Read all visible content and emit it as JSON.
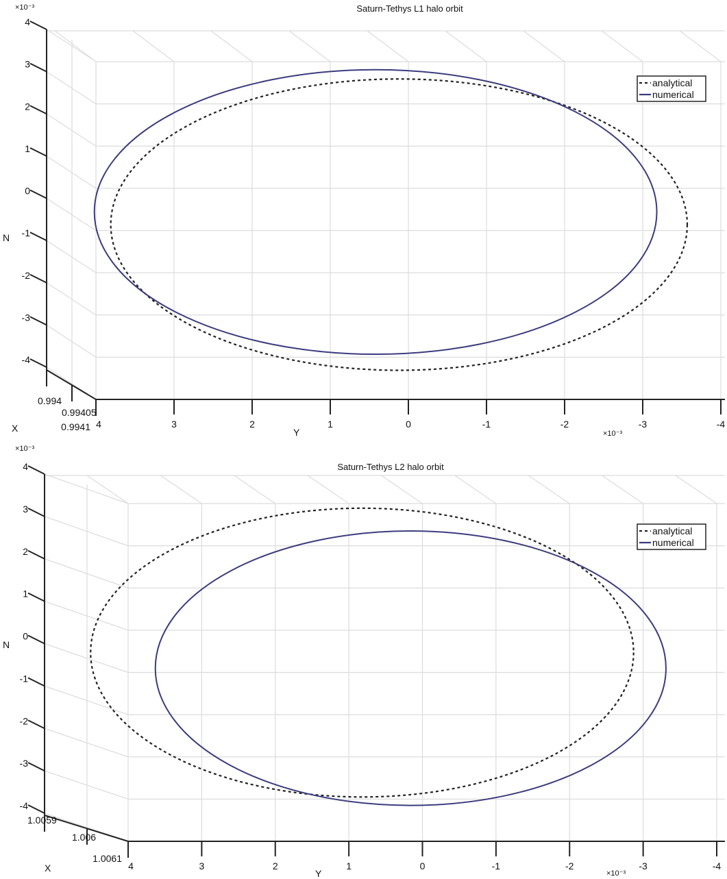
{
  "colors": {
    "numerical": "#3b3b7e",
    "analytical": "#222222",
    "grid": "#dcdcdc",
    "axis": "#222222"
  },
  "chart_data": [
    {
      "type": "line",
      "title": "Saturn-Tethys L1 halo orbit",
      "xlabel": "X",
      "ylabel": "Y",
      "zlabel": "N",
      "y_scale_label": "×10⁻³",
      "z_scale_label": "×10⁻³",
      "x_ticks": [
        "0.994",
        "0.99405",
        "0.9941"
      ],
      "y_ticks": [
        "4",
        "3",
        "2",
        "1",
        "0",
        "-1",
        "-2",
        "-3",
        "-4"
      ],
      "z_ticks": [
        "4",
        "3",
        "2",
        "1",
        "0",
        "-1",
        "-2",
        "-3",
        "-4"
      ],
      "ylim": [
        4,
        -4
      ],
      "zlim": [
        -4,
        4
      ],
      "grid": true,
      "legend": {
        "placement": "top-right",
        "entries": [
          "analytical",
          "numerical"
        ]
      },
      "series": [
        {
          "name": "analytical",
          "style": "dashed",
          "ellipse": {
            "center_y": 0.12,
            "semi_y": 3.69,
            "center_n": 0.14,
            "semi_n": 3.45
          }
        },
        {
          "name": "numerical",
          "style": "solid",
          "ellipse": {
            "center_y": 0.42,
            "semi_y": 3.6,
            "center_n": 0.44,
            "semi_n": 3.37
          }
        }
      ]
    },
    {
      "type": "line",
      "title": "Saturn-Tethys L2 halo orbit",
      "xlabel": "X",
      "ylabel": "Y",
      "zlabel": "N",
      "y_scale_label": "×10⁻³",
      "z_scale_label": "×10⁻³",
      "x_ticks": [
        "1.0059",
        "1.006",
        "1.0061"
      ],
      "y_ticks": [
        "4",
        "3",
        "2",
        "1",
        "0",
        "-1",
        "-2",
        "-3",
        "-4"
      ],
      "z_ticks": [
        "4",
        "3",
        "2",
        "1",
        "0",
        "-1",
        "-2",
        "-3",
        "-4"
      ],
      "ylim": [
        4,
        -4
      ],
      "zlim": [
        -4,
        4
      ],
      "grid": true,
      "legend": {
        "placement": "top-right",
        "entries": [
          "analytical",
          "numerical"
        ]
      },
      "series": [
        {
          "name": "analytical",
          "style": "dashed",
          "ellipse": {
            "center_y": 0.82,
            "semi_y": 3.69,
            "center_n": 0.47,
            "semi_n": 3.42
          }
        },
        {
          "name": "numerical",
          "style": "solid",
          "ellipse": {
            "center_y": 0.16,
            "semi_y": 3.47,
            "center_n": 0.1,
            "semi_n": 3.25
          }
        }
      ]
    }
  ]
}
